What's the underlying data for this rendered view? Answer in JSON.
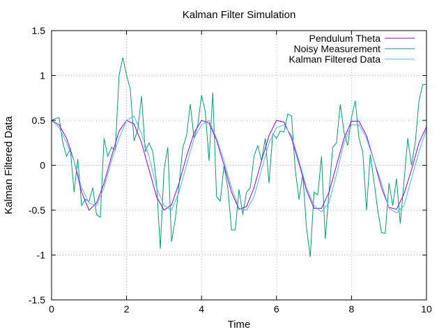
{
  "chart_data": {
    "type": "line",
    "title": "Kalman Filter Simulation",
    "xlabel": "Time",
    "ylabel": "Kalman Filtered Data",
    "xlim": [
      0,
      10
    ],
    "ylim": [
      -1.5,
      1.5
    ],
    "x_ticks": [
      0,
      2,
      4,
      6,
      8,
      10
    ],
    "y_ticks": [
      -1.5,
      -1,
      -0.5,
      0,
      0.5,
      1,
      1.5
    ],
    "x_tick_labels": [
      "0",
      "2",
      "4",
      "6",
      "8",
      "10"
    ],
    "y_tick_labels": [
      "-1.5",
      "-1",
      "-0.5",
      "0",
      "0.5",
      "1",
      "1.5"
    ],
    "grid": true,
    "legend_position": "top-right",
    "series": [
      {
        "name": "Pendulum Theta",
        "color": "#9400d3",
        "x": [
          0,
          0.2,
          0.4,
          0.6,
          0.8,
          1.0,
          1.2,
          1.4,
          1.6,
          1.8,
          2.0,
          2.2,
          2.4,
          2.6,
          2.8,
          3.0,
          3.2,
          3.4,
          3.6,
          3.8,
          4.0,
          4.2,
          4.4,
          4.6,
          4.8,
          5.0,
          5.2,
          5.4,
          5.6,
          5.8,
          6.0,
          6.2,
          6.4,
          6.6,
          6.8,
          7.0,
          7.2,
          7.4,
          7.6,
          7.8,
          8.0,
          8.2,
          8.4,
          8.6,
          8.8,
          9.0,
          9.2,
          9.4,
          9.6,
          9.8,
          10.0
        ],
        "y": [
          0.5,
          0.45,
          0.3,
          0.05,
          -0.3,
          -0.5,
          -0.42,
          -0.2,
          0.1,
          0.38,
          0.5,
          0.46,
          0.25,
          -0.05,
          -0.35,
          -0.5,
          -0.44,
          -0.2,
          0.1,
          0.36,
          0.5,
          0.47,
          0.28,
          0.0,
          -0.3,
          -0.49,
          -0.46,
          -0.25,
          0.05,
          0.33,
          0.5,
          0.48,
          0.3,
          0.02,
          -0.28,
          -0.48,
          -0.48,
          -0.3,
          0.0,
          0.3,
          0.49,
          0.49,
          0.33,
          0.05,
          -0.25,
          -0.47,
          -0.49,
          -0.32,
          -0.05,
          0.25,
          0.43
        ]
      },
      {
        "name": "Noisy Measurement",
        "color": "#009e73",
        "x": [
          0,
          0.1,
          0.2,
          0.3,
          0.4,
          0.5,
          0.6,
          0.7,
          0.8,
          0.9,
          1.0,
          1.1,
          1.2,
          1.3,
          1.4,
          1.5,
          1.6,
          1.7,
          1.8,
          1.9,
          2.0,
          2.1,
          2.2,
          2.3,
          2.4,
          2.5,
          2.6,
          2.7,
          2.8,
          2.9,
          3.0,
          3.1,
          3.2,
          3.3,
          3.4,
          3.5,
          3.6,
          3.7,
          3.8,
          3.9,
          4.0,
          4.1,
          4.2,
          4.3,
          4.4,
          4.5,
          4.6,
          4.7,
          4.8,
          4.9,
          5.0,
          5.1,
          5.2,
          5.3,
          5.4,
          5.5,
          5.6,
          5.7,
          5.8,
          5.9,
          6.0,
          6.1,
          6.2,
          6.3,
          6.4,
          6.5,
          6.6,
          6.7,
          6.8,
          6.9,
          7.0,
          7.1,
          7.2,
          7.3,
          7.4,
          7.5,
          7.6,
          7.7,
          7.8,
          7.9,
          8.0,
          8.1,
          8.2,
          8.3,
          8.4,
          8.5,
          8.6,
          8.7,
          8.8,
          8.9,
          9.0,
          9.1,
          9.2,
          9.3,
          9.4,
          9.5,
          9.6,
          9.7,
          9.8,
          9.9,
          10.0
        ],
        "y": [
          0.5,
          0.52,
          0.53,
          0.25,
          0.1,
          0.18,
          -0.3,
          0.07,
          -0.45,
          -0.38,
          -0.4,
          -0.25,
          -0.55,
          -0.58,
          0.3,
          0.1,
          0.2,
          0.17,
          1.0,
          1.2,
          1.0,
          0.85,
          0.27,
          0.4,
          0.77,
          0.15,
          0.25,
          0.15,
          -0.2,
          -0.93,
          -0.05,
          0.2,
          -0.85,
          -0.6,
          -0.22,
          0.2,
          0.33,
          0.68,
          0.3,
          0.45,
          0.78,
          0.6,
          0.05,
          0.81,
          -0.35,
          -0.4,
          0.0,
          -0.25,
          -0.72,
          -0.72,
          -0.27,
          -0.55,
          -0.3,
          -0.25,
          0.1,
          0.22,
          0.05,
          0.3,
          -0.2,
          0.35,
          0.3,
          0.38,
          0.37,
          0.57,
          0.55,
          -0.05,
          -0.38,
          -0.1,
          -0.7,
          -1.02,
          -0.3,
          -0.33,
          0.1,
          -0.82,
          -0.3,
          0.2,
          0.25,
          0.68,
          0.37,
          0.22,
          0.53,
          0.72,
          0.3,
          0.15,
          -0.5,
          0.12,
          -0.18,
          -0.5,
          -0.75,
          -0.76,
          -0.2,
          -0.45,
          -0.15,
          -0.65,
          -0.18,
          0.3,
          0.0,
          0.25,
          0.72,
          0.9,
          0.9
        ]
      },
      {
        "name": "Kalman Filtered Data",
        "color": "#56b4e9",
        "x": [
          0,
          0.2,
          0.4,
          0.6,
          0.8,
          1.0,
          1.2,
          1.4,
          1.6,
          1.8,
          2.0,
          2.2,
          2.4,
          2.6,
          2.8,
          3.0,
          3.2,
          3.4,
          3.6,
          3.8,
          4.0,
          4.2,
          4.4,
          4.6,
          4.8,
          5.0,
          5.2,
          5.4,
          5.6,
          5.8,
          6.0,
          6.2,
          6.4,
          6.6,
          6.8,
          7.0,
          7.2,
          7.4,
          7.6,
          7.8,
          8.0,
          8.2,
          8.4,
          8.6,
          8.8,
          9.0,
          9.2,
          9.4,
          9.6,
          9.8,
          10.0
        ],
        "y": [
          0.5,
          0.42,
          0.25,
          0.05,
          -0.25,
          -0.42,
          -0.45,
          -0.25,
          0.05,
          0.3,
          0.5,
          0.55,
          0.35,
          0.1,
          -0.25,
          -0.45,
          -0.5,
          -0.3,
          0.0,
          0.3,
          0.45,
          0.5,
          0.3,
          0.05,
          -0.25,
          -0.48,
          -0.5,
          -0.35,
          -0.05,
          0.25,
          0.42,
          0.45,
          0.33,
          0.05,
          -0.25,
          -0.45,
          -0.52,
          -0.42,
          -0.1,
          0.25,
          0.45,
          0.45,
          0.3,
          0.05,
          -0.2,
          -0.48,
          -0.53,
          -0.45,
          -0.15,
          0.15,
          0.4
        ]
      }
    ]
  }
}
